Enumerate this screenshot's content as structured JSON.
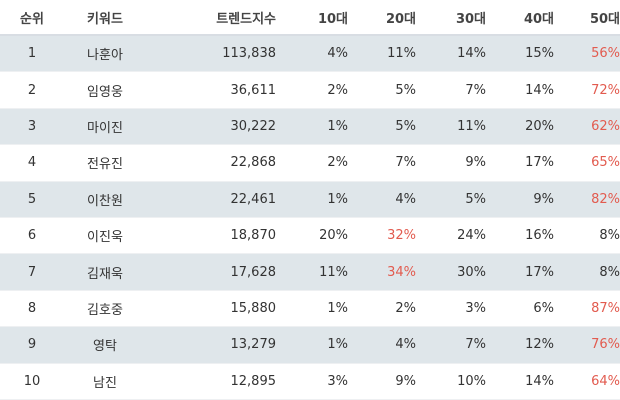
{
  "highlight_color": "#e25b4f",
  "row_shade_color": "#dfe6ea",
  "table": {
    "headers": [
      "순위",
      "키워드",
      "트렌드지수",
      "10대",
      "20대",
      "30대",
      "40대",
      "50대"
    ],
    "rows": [
      {
        "rank": "1",
        "keyword": "나훈아",
        "index": "113,838",
        "age10": "4%",
        "age20": "11%",
        "age30": "14%",
        "age40": "15%",
        "age50": "56%",
        "highlight": "age50"
      },
      {
        "rank": "2",
        "keyword": "임영웅",
        "index": "36,611",
        "age10": "2%",
        "age20": "5%",
        "age30": "7%",
        "age40": "14%",
        "age50": "72%",
        "highlight": "age50"
      },
      {
        "rank": "3",
        "keyword": "마이진",
        "index": "30,222",
        "age10": "1%",
        "age20": "5%",
        "age30": "11%",
        "age40": "20%",
        "age50": "62%",
        "highlight": "age50"
      },
      {
        "rank": "4",
        "keyword": "전유진",
        "index": "22,868",
        "age10": "2%",
        "age20": "7%",
        "age30": "9%",
        "age40": "17%",
        "age50": "65%",
        "highlight": "age50"
      },
      {
        "rank": "5",
        "keyword": "이찬원",
        "index": "22,461",
        "age10": "1%",
        "age20": "4%",
        "age30": "5%",
        "age40": "9%",
        "age50": "82%",
        "highlight": "age50"
      },
      {
        "rank": "6",
        "keyword": "이진욱",
        "index": "18,870",
        "age10": "20%",
        "age20": "32%",
        "age30": "24%",
        "age40": "16%",
        "age50": "8%",
        "highlight": "age20"
      },
      {
        "rank": "7",
        "keyword": "김재욱",
        "index": "17,628",
        "age10": "11%",
        "age20": "34%",
        "age30": "30%",
        "age40": "17%",
        "age50": "8%",
        "highlight": "age20"
      },
      {
        "rank": "8",
        "keyword": "김호중",
        "index": "15,880",
        "age10": "1%",
        "age20": "2%",
        "age30": "3%",
        "age40": "6%",
        "age50": "87%",
        "highlight": "age50"
      },
      {
        "rank": "9",
        "keyword": "영탁",
        "index": "13,279",
        "age10": "1%",
        "age20": "4%",
        "age30": "7%",
        "age40": "12%",
        "age50": "76%",
        "highlight": "age50"
      },
      {
        "rank": "10",
        "keyword": "남진",
        "index": "12,895",
        "age10": "3%",
        "age20": "9%",
        "age30": "10%",
        "age40": "14%",
        "age50": "64%",
        "highlight": "age50"
      }
    ]
  }
}
